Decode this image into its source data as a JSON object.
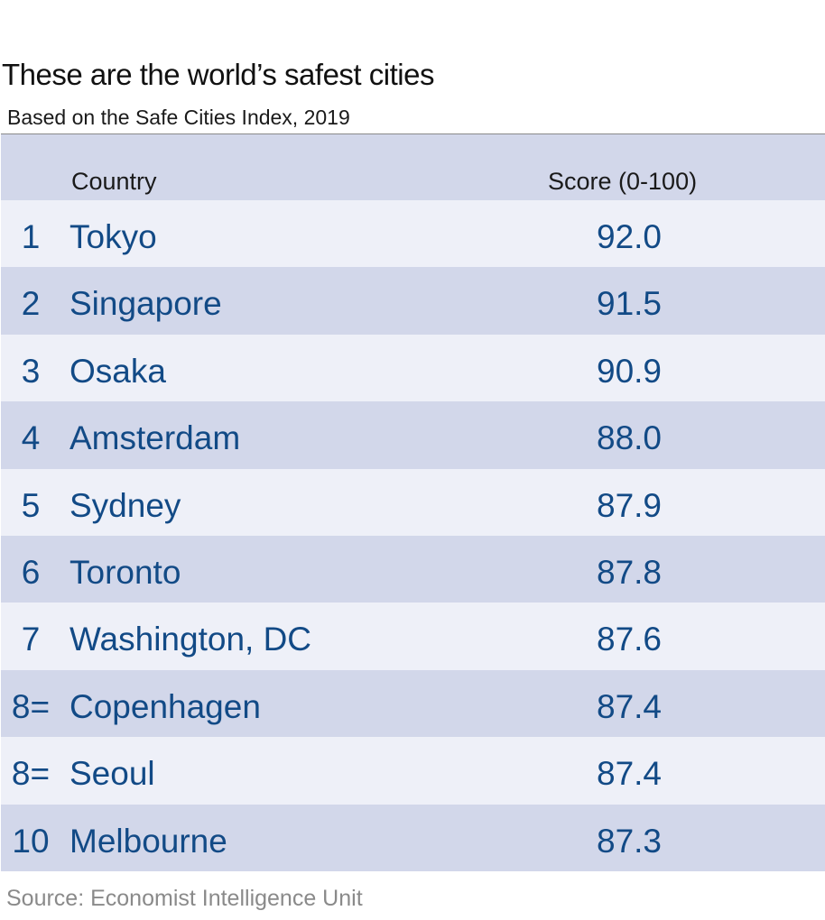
{
  "title": "These are the world’s safest cities",
  "subtitle": "Based on the Safe Cities Index, 2019",
  "source": "Source: Economist Intelligence Unit",
  "colors": {
    "header_bg": "#d2d7ea",
    "row_light": "#eef0f8",
    "row_dark": "#d2d7ea",
    "value_text": "#124a86",
    "source_text": "#8a8a8a"
  },
  "chart_data": {
    "type": "table",
    "columns": [
      "",
      "Country",
      "Score (0-100)"
    ],
    "rows": [
      {
        "rank": "1",
        "city": "Tokyo",
        "score": "92.0"
      },
      {
        "rank": "2",
        "city": "Singapore",
        "score": "91.5"
      },
      {
        "rank": "3",
        "city": "Osaka",
        "score": "90.9"
      },
      {
        "rank": "4",
        "city": "Amsterdam",
        "score": "88.0"
      },
      {
        "rank": "5",
        "city": "Sydney",
        "score": "87.9"
      },
      {
        "rank": "6",
        "city": "Toronto",
        "score": "87.8"
      },
      {
        "rank": "7",
        "city": "Washington, DC",
        "score": "87.6"
      },
      {
        "rank": "8=",
        "city": "Copenhagen",
        "score": "87.4"
      },
      {
        "rank": "8=",
        "city": "Seoul",
        "score": "87.4"
      },
      {
        "rank": "10",
        "city": "Melbourne",
        "score": "87.3"
      }
    ]
  }
}
